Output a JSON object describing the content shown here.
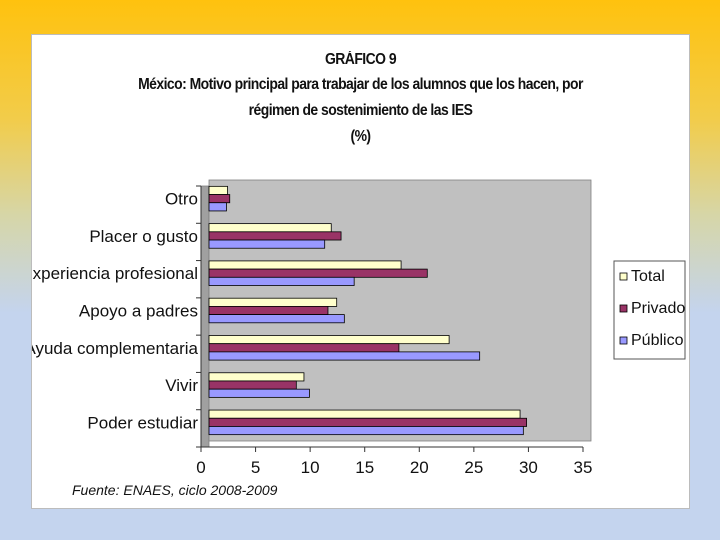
{
  "colors": {
    "total": "#ffffcc",
    "privado": "#993366",
    "publico": "#9999ff",
    "plot_bg": "#c0c0c0",
    "bar_stroke": "#000000"
  },
  "chart_data": {
    "type": "bar",
    "orientation": "horizontal",
    "title_lines": [
      "GRÁFICO 9",
      "México: Motivo principal para trabajar de los alumnos que los hacen, por",
      "régimen de sostenimiento de las IES",
      "(%)"
    ],
    "categories": [
      "Otro",
      "Placer o gusto",
      "Experiencia profesional",
      "Apoyo a padres",
      "Ayuda complementaria",
      "Vivir",
      "Poder estudiar"
    ],
    "series": [
      {
        "name": "Total",
        "color": "#ffffcc",
        "values": [
          1.7,
          11.2,
          17.6,
          11.7,
          22.0,
          8.7,
          28.5
        ]
      },
      {
        "name": "Privado",
        "color": "#993366",
        "values": [
          1.9,
          12.1,
          20.0,
          10.9,
          17.4,
          8.0,
          29.1
        ]
      },
      {
        "name": "Público",
        "color": "#9999ff",
        "values": [
          1.6,
          10.6,
          13.3,
          12.4,
          24.8,
          9.2,
          28.8
        ]
      }
    ],
    "xlim": [
      0,
      35
    ],
    "xticks": [
      0,
      5,
      10,
      15,
      20,
      25,
      30,
      35
    ],
    "grid": false,
    "legend_position": "right",
    "xlabel": "",
    "ylabel": ""
  },
  "source_note": "Fuente: ENAES, ciclo 2008-2009"
}
